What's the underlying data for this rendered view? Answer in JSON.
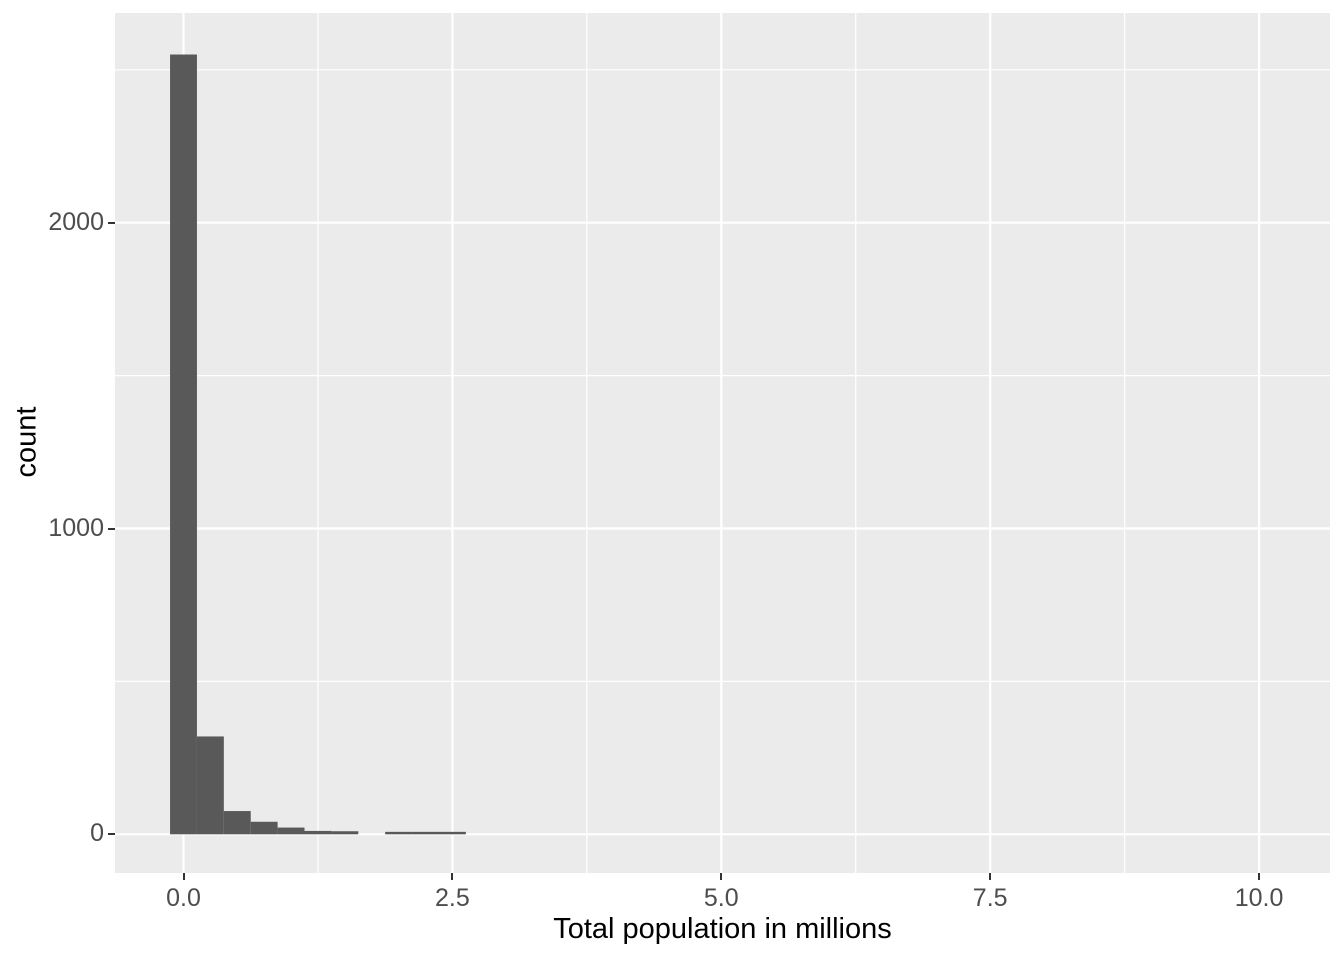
{
  "figure": {
    "background_color": "#FFFFFF",
    "panel_background_color": "#EBEBEB",
    "grid_color": "#FFFFFF",
    "bar_color": "#595959",
    "axis_text_color": "#4D4D4D",
    "axis_title_color": "#000000",
    "tick_mark_color": "#333333"
  },
  "chart_data": {
    "type": "bar",
    "subtype": "histogram",
    "title": "",
    "xlabel": "Total population in millions",
    "ylabel": "count",
    "grid": true,
    "legend": "none",
    "binwidth": 0.25,
    "bins": [
      {
        "center": 0.0,
        "count": 2550
      },
      {
        "center": 0.25,
        "count": 320
      },
      {
        "center": 0.5,
        "count": 76
      },
      {
        "center": 0.75,
        "count": 41
      },
      {
        "center": 1.0,
        "count": 22
      },
      {
        "center": 1.25,
        "count": 11
      },
      {
        "center": 1.5,
        "count": 10
      },
      {
        "center": 1.75,
        "count": 0
      },
      {
        "center": 2.0,
        "count": 8
      },
      {
        "center": 2.25,
        "count": 8
      },
      {
        "center": 2.5,
        "count": 8
      }
    ],
    "x_ticks": [
      {
        "value": 0,
        "label": "0.0"
      },
      {
        "value": 2.5,
        "label": "2.5"
      },
      {
        "value": 5,
        "label": "5.0"
      },
      {
        "value": 7.5,
        "label": "7.5"
      },
      {
        "value": 10,
        "label": "10.0"
      }
    ],
    "y_ticks": [
      {
        "value": 0,
        "label": "0"
      },
      {
        "value": 1000,
        "label": "1000"
      },
      {
        "value": 2000,
        "label": "2000"
      }
    ],
    "x_minor_gridlines": [
      1.25,
      3.75,
      6.25,
      8.75
    ],
    "y_minor_gridlines": [
      500,
      1500,
      2500
    ],
    "xlim": [
      -0.64,
      10.66
    ],
    "ylim": [
      -127,
      2686
    ]
  }
}
